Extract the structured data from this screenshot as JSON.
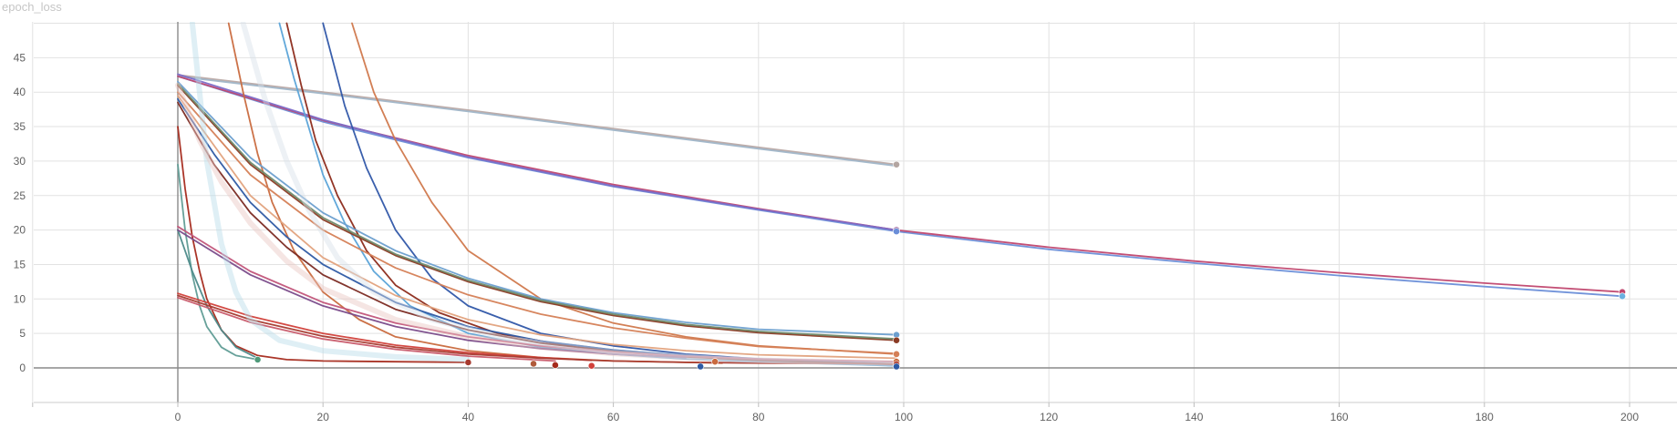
{
  "chart_data": {
    "type": "line",
    "title": "epoch_loss",
    "xlabel": "",
    "ylabel": "",
    "xlim": [
      -20,
      205
    ],
    "ylim": [
      -5,
      50
    ],
    "x_ticks": [
      0,
      20,
      40,
      60,
      80,
      100,
      120,
      140,
      160,
      180,
      200
    ],
    "y_ticks": [
      0,
      5,
      10,
      15,
      20,
      25,
      30,
      35,
      40,
      45
    ],
    "grid": true,
    "legend": "none",
    "series": [
      {
        "color": "#b9a8a4",
        "x": [
          0,
          20,
          40,
          60,
          80,
          99
        ],
        "y": [
          42.5,
          40.0,
          37.4,
          34.7,
          32.0,
          29.5
        ]
      },
      {
        "color": "#9fb5c8",
        "x": [
          0,
          20,
          40,
          60,
          80,
          99
        ],
        "y": [
          42.3,
          39.8,
          37.2,
          34.5,
          31.8,
          29.3
        ]
      },
      {
        "color": "#6a8ed8",
        "x": [
          0,
          20,
          40,
          60,
          80,
          99,
          120,
          140,
          160,
          180,
          199
        ],
        "y": [
          42.3,
          35.7,
          30.5,
          26.3,
          22.9,
          19.8,
          17.2,
          15.2,
          13.4,
          11.8,
          10.4
        ]
      },
      {
        "color": "#c0466e",
        "x": [
          0,
          20,
          40,
          60,
          80,
          99,
          120,
          140,
          160,
          180,
          199
        ],
        "y": [
          42.3,
          35.9,
          30.8,
          26.6,
          23.1,
          20.0,
          17.5,
          15.5,
          13.8,
          12.3,
          11.0
        ]
      },
      {
        "color": "#7b6ac7",
        "x": [
          0,
          20,
          40,
          60,
          80,
          99
        ],
        "y": [
          42.6,
          36.0,
          30.6,
          26.4,
          23.0,
          20.0
        ]
      },
      {
        "color": "#2f56a8",
        "x": [
          20,
          23,
          26,
          30,
          35,
          40,
          50,
          60,
          70,
          80,
          90,
          99
        ],
        "y": [
          50,
          38,
          29,
          20,
          13,
          9,
          5,
          3.2,
          2.0,
          1.3,
          0.8,
          0.3
        ]
      },
      {
        "color": "#5aa3d8",
        "x": [
          14,
          16,
          18,
          20,
          23,
          27,
          32,
          40,
          50,
          60,
          70,
          80,
          99
        ],
        "y": [
          50,
          42,
          35,
          28,
          21,
          14,
          9,
          5,
          3,
          2,
          1.3,
          0.9,
          0.3
        ]
      },
      {
        "color": "#c96a3e",
        "x": [
          7,
          9,
          11,
          13,
          16,
          20,
          25,
          30,
          40,
          50,
          60,
          75
        ],
        "y": [
          50,
          40,
          31,
          24,
          17,
          11,
          7,
          4.5,
          2.5,
          1.5,
          1.0,
          0.7
        ]
      },
      {
        "color": "#8c2a1a",
        "x": [
          15,
          17,
          19,
          22,
          26,
          30,
          36,
          44,
          55,
          65,
          75
        ],
        "y": [
          50,
          41,
          33,
          25,
          17,
          12,
          8,
          5,
          3,
          2,
          1.4
        ]
      },
      {
        "color": "#d0784c",
        "x": [
          24,
          27,
          30,
          35,
          40,
          50,
          60,
          70,
          80,
          99
        ],
        "y": [
          50,
          40,
          33,
          24,
          17,
          10,
          6.5,
          4.5,
          3.2,
          2.0
        ]
      },
      {
        "color": "#6b9fcf",
        "x": [
          0,
          10,
          20,
          30,
          40,
          50,
          60,
          70,
          80,
          99
        ],
        "y": [
          41.5,
          30.5,
          22.5,
          17.0,
          13.0,
          10.0,
          8.0,
          6.6,
          5.6,
          4.8
        ]
      },
      {
        "color": "#8a3b24",
        "x": [
          0,
          10,
          20,
          30,
          40,
          50,
          60,
          70,
          80,
          99
        ],
        "y": [
          41.0,
          29.5,
          21.5,
          16.3,
          12.5,
          9.6,
          7.6,
          6.1,
          5.1,
          4.0
        ]
      },
      {
        "color": "#6e8a6a",
        "x": [
          0,
          10,
          20,
          30,
          40,
          50,
          60,
          70,
          80,
          99
        ],
        "y": [
          41.2,
          29.8,
          21.8,
          16.5,
          12.7,
          9.8,
          7.8,
          6.3,
          5.3,
          4.2
        ]
      },
      {
        "color": "#d57f56",
        "x": [
          0,
          10,
          20,
          30,
          40,
          50,
          60,
          70,
          80,
          99
        ],
        "y": [
          40.0,
          28.0,
          20.0,
          14.5,
          10.6,
          7.8,
          5.8,
          4.3,
          3.1,
          2.1
        ]
      },
      {
        "color": "#e1a27d",
        "x": [
          0,
          10,
          20,
          30,
          40,
          50,
          60,
          70,
          80,
          99
        ],
        "y": [
          39.5,
          25.0,
          16.0,
          10.5,
          7.0,
          4.8,
          3.4,
          2.5,
          1.9,
          1.4
        ]
      },
      {
        "color": "#2e5aa4",
        "x": [
          0,
          5,
          10,
          15,
          20,
          30,
          40,
          50,
          60,
          70,
          80,
          99
        ],
        "y": [
          39.0,
          31.0,
          24.0,
          19.0,
          15.0,
          9.5,
          6.0,
          3.9,
          2.6,
          1.8,
          1.2,
          0.6
        ]
      },
      {
        "color": "#7b2a22",
        "x": [
          0,
          5,
          10,
          15,
          20,
          30,
          40,
          50,
          60,
          70,
          80,
          99
        ],
        "y": [
          38.5,
          29.5,
          22.5,
          17.5,
          13.5,
          8.5,
          5.5,
          3.6,
          2.4,
          1.6,
          1.1,
          0.5
        ]
      },
      {
        "color": "#a52a1c",
        "x": [
          0,
          1,
          2,
          3,
          4,
          6,
          8,
          11,
          15,
          20,
          30,
          40
        ],
        "y": [
          35.0,
          26.0,
          19.0,
          14.0,
          10.0,
          5.5,
          3.2,
          1.8,
          1.2,
          1.0,
          0.9,
          0.8
        ]
      },
      {
        "color": "#5f9c95",
        "x": [
          0,
          1,
          2,
          3,
          4,
          6,
          8,
          11
        ],
        "y": [
          29.5,
          20.0,
          13.5,
          9.0,
          6.0,
          3.0,
          1.8,
          1.2
        ]
      },
      {
        "color": "#4c8a8a",
        "x": [
          0,
          2,
          4,
          6,
          8,
          11
        ],
        "y": [
          20.0,
          14.0,
          9.0,
          5.5,
          3.0,
          1.4
        ]
      },
      {
        "color": "#c2557a",
        "x": [
          0,
          10,
          20,
          30,
          40,
          50,
          60,
          70,
          80,
          99
        ],
        "y": [
          20.5,
          14.0,
          9.5,
          6.5,
          4.5,
          3.2,
          2.3,
          1.7,
          1.3,
          0.9
        ]
      },
      {
        "color": "#7a4b8a",
        "x": [
          0,
          10,
          20,
          30,
          40,
          50,
          60,
          70
        ],
        "y": [
          20.0,
          13.5,
          9.0,
          6.0,
          4.0,
          2.8,
          2.0,
          1.5
        ]
      },
      {
        "color": "#d1403a",
        "x": [
          0,
          10,
          20,
          30,
          40,
          50,
          57
        ],
        "y": [
          10.8,
          7.5,
          5.0,
          3.3,
          2.2,
          1.5,
          1.1
        ]
      },
      {
        "color": "#a73a2f",
        "x": [
          0,
          10,
          20,
          30,
          40,
          50,
          60,
          70,
          80,
          99
        ],
        "y": [
          10.5,
          7.0,
          4.6,
          3.0,
          2.0,
          1.4,
          1.0,
          0.8,
          0.7,
          0.6
        ]
      },
      {
        "color": "#c85a6a",
        "x": [
          0,
          10,
          20,
          30,
          40,
          52
        ],
        "y": [
          10.2,
          6.6,
          4.2,
          2.7,
          1.7,
          1.0
        ]
      },
      {
        "color": "#b9dbe8",
        "x": [
          2,
          4,
          6,
          8,
          10,
          14,
          20,
          30,
          40
        ],
        "y": [
          50,
          30,
          18,
          11,
          7,
          4,
          2.5,
          1.6,
          1.2
        ]
      },
      {
        "color": "#e8c6c1",
        "x": [
          0,
          3,
          6,
          10,
          15,
          20,
          30,
          40,
          50,
          60,
          70,
          80,
          99
        ],
        "y": [
          41.0,
          33.0,
          27.0,
          21.0,
          15.5,
          11.5,
          7.0,
          4.5,
          3.0,
          2.1,
          1.5,
          1.1,
          0.7
        ]
      },
      {
        "color": "#d8dfe8",
        "x": [
          9,
          12,
          15,
          18,
          22,
          27,
          35,
          45,
          60,
          75,
          90,
          99
        ],
        "y": [
          50,
          39,
          30,
          23,
          16,
          11,
          7,
          4.3,
          2.3,
          1.3,
          0.8,
          0.6
        ]
      }
    ],
    "end_markers": [
      {
        "x": 99,
        "y": 29.5,
        "color": "#b3a5a1"
      },
      {
        "x": 99,
        "y": 20.0,
        "color": "#8a4b8e"
      },
      {
        "x": 99,
        "y": 19.8,
        "color": "#6a8ed8"
      },
      {
        "x": 99,
        "y": 4.8,
        "color": "#6b9fcf"
      },
      {
        "x": 99,
        "y": 4.0,
        "color": "#8a3b24"
      },
      {
        "x": 99,
        "y": 2.0,
        "color": "#d57f56"
      },
      {
        "x": 99,
        "y": 0.9,
        "color": "#c96a3e"
      },
      {
        "x": 99,
        "y": 0.5,
        "color": "#a52a1c"
      },
      {
        "x": 99,
        "y": 0.2,
        "color": "#2e5aa4"
      },
      {
        "x": 199,
        "y": 11.0,
        "color": "#c0466e"
      },
      {
        "x": 199,
        "y": 10.4,
        "color": "#6ab0e0"
      },
      {
        "x": 11,
        "y": 1.2,
        "color": "#4f9a7a"
      },
      {
        "x": 40,
        "y": 0.8,
        "color": "#a73a2f"
      },
      {
        "x": 49,
        "y": 0.6,
        "color": "#b05a3a"
      },
      {
        "x": 52,
        "y": 0.4,
        "color": "#a52a1c"
      },
      {
        "x": 57,
        "y": 0.3,
        "color": "#d1403a"
      },
      {
        "x": 72,
        "y": 0.2,
        "color": "#2e5aa4"
      },
      {
        "x": 74,
        "y": 0.9,
        "color": "#c96a3e"
      }
    ]
  }
}
